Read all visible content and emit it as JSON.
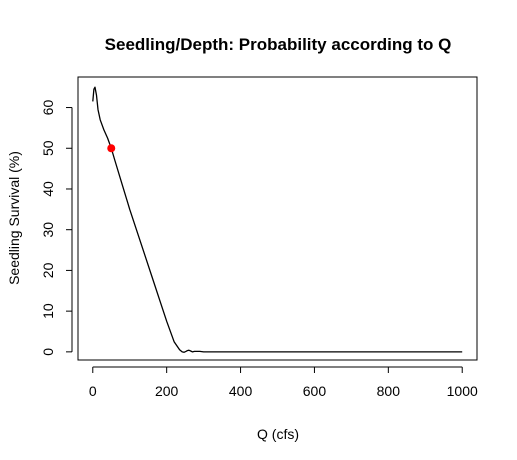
{
  "chart_data": {
    "type": "line",
    "title": "Seedling/Depth: Probability according to Q",
    "xlabel": "Q (cfs)",
    "ylabel": "Seedling Survival (%)",
    "xlim": [
      -40,
      1040
    ],
    "ylim": [
      -2,
      67.5
    ],
    "xticks": [
      0,
      200,
      400,
      600,
      800,
      1000
    ],
    "yticks": [
      0,
      10,
      20,
      30,
      40,
      50,
      60
    ],
    "grid": false,
    "legend": "none",
    "series": [
      {
        "color": "#000000",
        "x": [
          0,
          3,
          6,
          10,
          14,
          20,
          30,
          40,
          50,
          60,
          80,
          100,
          120,
          140,
          160,
          180,
          200,
          220,
          235,
          242,
          247,
          252,
          256,
          260,
          265,
          270,
          275,
          280,
          290,
          300,
          350,
          400,
          500,
          600,
          700,
          800,
          900,
          1000
        ],
        "y": [
          61.5,
          64.5,
          65.0,
          63.0,
          59.5,
          57.0,
          54.5,
          52.5,
          50.0,
          47.0,
          41.0,
          35.0,
          29.5,
          24.0,
          18.5,
          13.0,
          7.5,
          2.5,
          0.5,
          0.0,
          -0.1,
          0.1,
          0.3,
          0.4,
          0.2,
          0.0,
          0.1,
          0.1,
          0.1,
          0.0,
          0.0,
          0.0,
          0.0,
          0.0,
          0.0,
          0.0,
          0.0,
          0.0
        ]
      }
    ],
    "highlight_points": [
      {
        "x": 50,
        "y": 50,
        "color": "#ff0000"
      }
    ]
  }
}
